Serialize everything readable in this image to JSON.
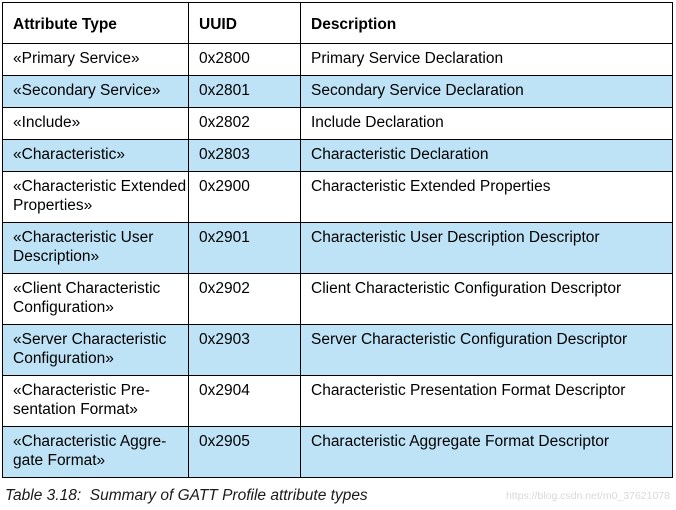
{
  "table": {
    "headers": [
      "Attribute Type",
      "UUID",
      "Description"
    ],
    "rows": [
      {
        "type": "«Primary Service»",
        "uuid": "0x2800",
        "description": "Primary Service Declaration"
      },
      {
        "type": "«Secondary Service»",
        "uuid": "0x2801",
        "description": "Secondary Service Declaration"
      },
      {
        "type": "«Include»",
        "uuid": "0x2802",
        "description": "Include Declaration"
      },
      {
        "type": "«Characteristic»",
        "uuid": "0x2803",
        "description": "Characteristic Declaration"
      },
      {
        "type": "«Characteristic Extended Properties»",
        "uuid": "0x2900",
        "description": "Characteristic Extended Properties"
      },
      {
        "type": "«Characteristic User Description»",
        "uuid": "0x2901",
        "description": "Characteristic User Description Descriptor"
      },
      {
        "type": "«Client Characteristic Configuration»",
        "uuid": "0x2902",
        "description": "Client Characteristic Configuration Descriptor"
      },
      {
        "type": "«Server Characteristic Configuration»",
        "uuid": "0x2903",
        "description": "Server Characteristic Configuration Descriptor"
      },
      {
        "type": "«Characteristic Pre-sentation Format»",
        "uuid": "0x2904",
        "description": "Characteristic Presentation Format Descriptor"
      },
      {
        "type": "«Characteristic Aggre-gate Format»",
        "uuid": "0x2905",
        "description": "Characteristic Aggregate Format Descriptor"
      }
    ]
  },
  "caption": "Table 3.18:  Summary of GATT Profile attribute types",
  "watermark": "https://blog.csdn.net/m0_37621078",
  "colors": {
    "row_highlight": "#bfe3f6",
    "row_plain": "#ffffff",
    "border": "#000000"
  }
}
